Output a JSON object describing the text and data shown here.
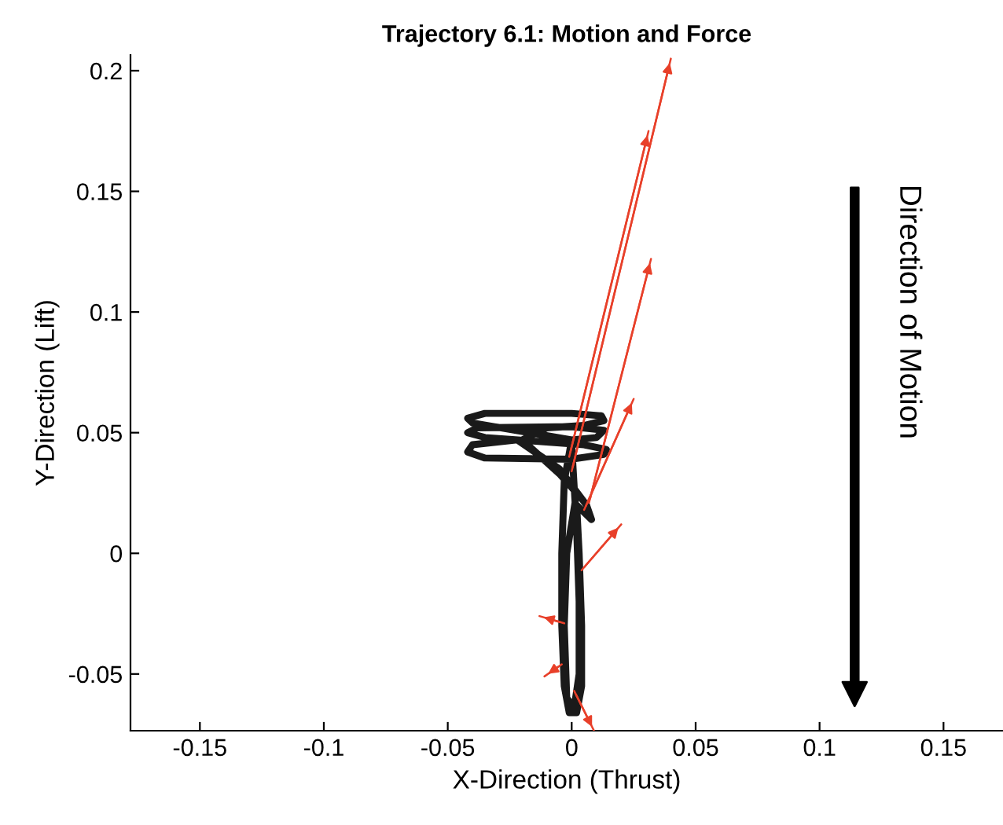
{
  "chart_data": {
    "type": "line",
    "title": "Trajectory 6.1: Motion and Force",
    "xlabel": "X-Direction (Thrust)",
    "ylabel": "Y-Direction (Lift)",
    "annotations": [
      "Direction of Motion"
    ],
    "xlim": [
      -0.178,
      0.174
    ],
    "xticks": [
      -0.15,
      -0.1,
      -0.05,
      0,
      0.05,
      0.1,
      0.15
    ],
    "ylim": [
      -0.0735,
      0.2065
    ],
    "yticks": [
      -0.05,
      0,
      0.05,
      0.1,
      0.15,
      0.2
    ],
    "grid": false,
    "legend": false,
    "marker": "none",
    "line_style": "solid",
    "series": [
      {
        "color": "#1a1a1a",
        "x": [
          0.0,
          -0.003,
          -0.004,
          -0.004,
          -0.003,
          -0.001,
          0.002,
          0.004,
          0.004,
          0.003,
          0.002,
          0.008,
          0.006,
          -0.005,
          -0.022,
          -0.04,
          -0.042,
          -0.035,
          0.0,
          0.013,
          0.014,
          0.005,
          -0.035,
          -0.042,
          -0.038,
          0.0,
          0.013,
          0.01,
          0.0,
          -0.04,
          -0.042,
          -0.035,
          0.0,
          0.012,
          0.013,
          0.005,
          -0.01,
          -0.02,
          -0.005,
          0.002,
          -0.002,
          -0.003,
          -0.002,
          0.001,
          0.003,
          0.003,
          0.002,
          0.0
        ],
        "values": [
          0.047,
          0.03,
          0.0,
          -0.03,
          -0.055,
          -0.066,
          -0.066,
          -0.055,
          -0.03,
          0.0,
          0.02,
          0.014,
          0.02,
          0.035,
          0.047,
          0.045,
          0.042,
          0.0395,
          0.039,
          0.041,
          0.043,
          0.045,
          0.048,
          0.05,
          0.052,
          0.0525,
          0.051,
          0.048,
          0.047,
          0.054,
          0.056,
          0.058,
          0.058,
          0.057,
          0.055,
          0.053,
          0.052,
          0.047,
          0.033,
          0.025,
          0.0,
          -0.03,
          -0.06,
          -0.064,
          -0.05,
          -0.02,
          0.01,
          0.045
        ]
      },
      {
        "color": "#e8402a",
        "x": [
          0.0,
          0.04,
          null,
          -0.001,
          0.031,
          null,
          0.007,
          0.032,
          null,
          0.005,
          0.025,
          null,
          0.004,
          0.02,
          null,
          -0.003,
          -0.013,
          null,
          -0.004,
          -0.011,
          null,
          0.001,
          0.009
        ],
        "values": [
          0.034,
          0.205,
          null,
          0.04,
          0.175,
          null,
          0.021,
          0.122,
          null,
          0.018,
          0.064,
          null,
          -0.007,
          0.012,
          null,
          -0.029,
          -0.026,
          null,
          -0.046,
          -0.051,
          null,
          -0.057,
          -0.0735
        ]
      }
    ]
  }
}
